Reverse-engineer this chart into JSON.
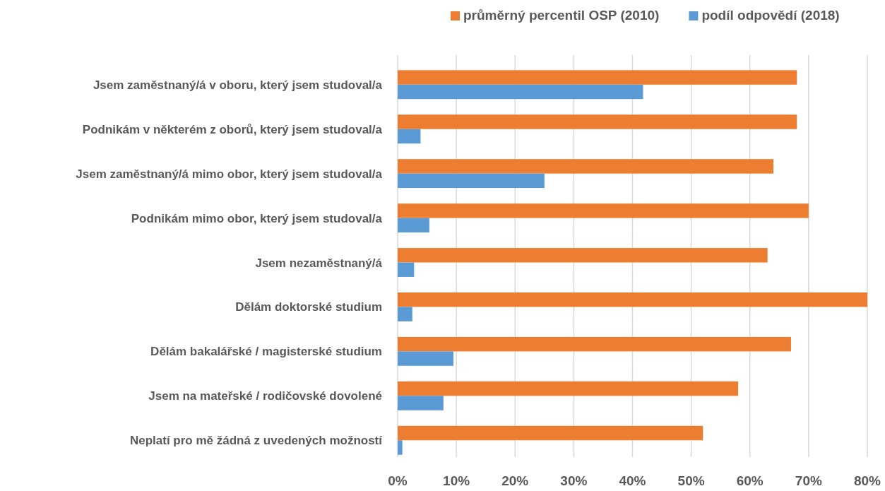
{
  "chart_data": {
    "type": "bar",
    "orientation": "horizontal",
    "categories": [
      "Jsem zaměstnaný/á v oboru, který jsem studoval/a",
      "Podnikám v některém z oborů, který jsem studoval/a",
      "Jsem zaměstnaný/á mimo obor, který jsem studoval/a",
      "Podnikám mimo obor, který jsem studoval/a",
      "Jsem nezaměstnaný/á",
      "Dělám doktorské studium",
      "Dělám bakalářské / magisterské studium",
      "Jsem na mateřské / rodičovské dovolené",
      "Neplatí pro mě žádná z uvedených možností"
    ],
    "series": [
      {
        "name": "průměrný percentil OSP (2010)",
        "color": "#ed7d31",
        "values": [
          68,
          68,
          64,
          70,
          63,
          80,
          67,
          58,
          52
        ]
      },
      {
        "name": "podíl odpovědí (2018)",
        "color": "#5b9bd5",
        "values": [
          41.8,
          3.9,
          25,
          5.4,
          2.8,
          2.5,
          9.5,
          7.8,
          0.8
        ]
      }
    ],
    "xlim": [
      0,
      80
    ],
    "xticks": [
      {
        "value": 0,
        "label": "0%"
      },
      {
        "value": 10,
        "label": "10%"
      },
      {
        "value": 20,
        "label": "20%"
      },
      {
        "value": 30,
        "label": "30%"
      },
      {
        "value": 40,
        "label": "40%"
      },
      {
        "value": 50,
        "label": "50%"
      },
      {
        "value": 60,
        "label": "60%"
      },
      {
        "value": 70,
        "label": "70%"
      },
      {
        "value": 80,
        "label": "80%"
      }
    ],
    "grid": "x",
    "legend": "top right"
  }
}
